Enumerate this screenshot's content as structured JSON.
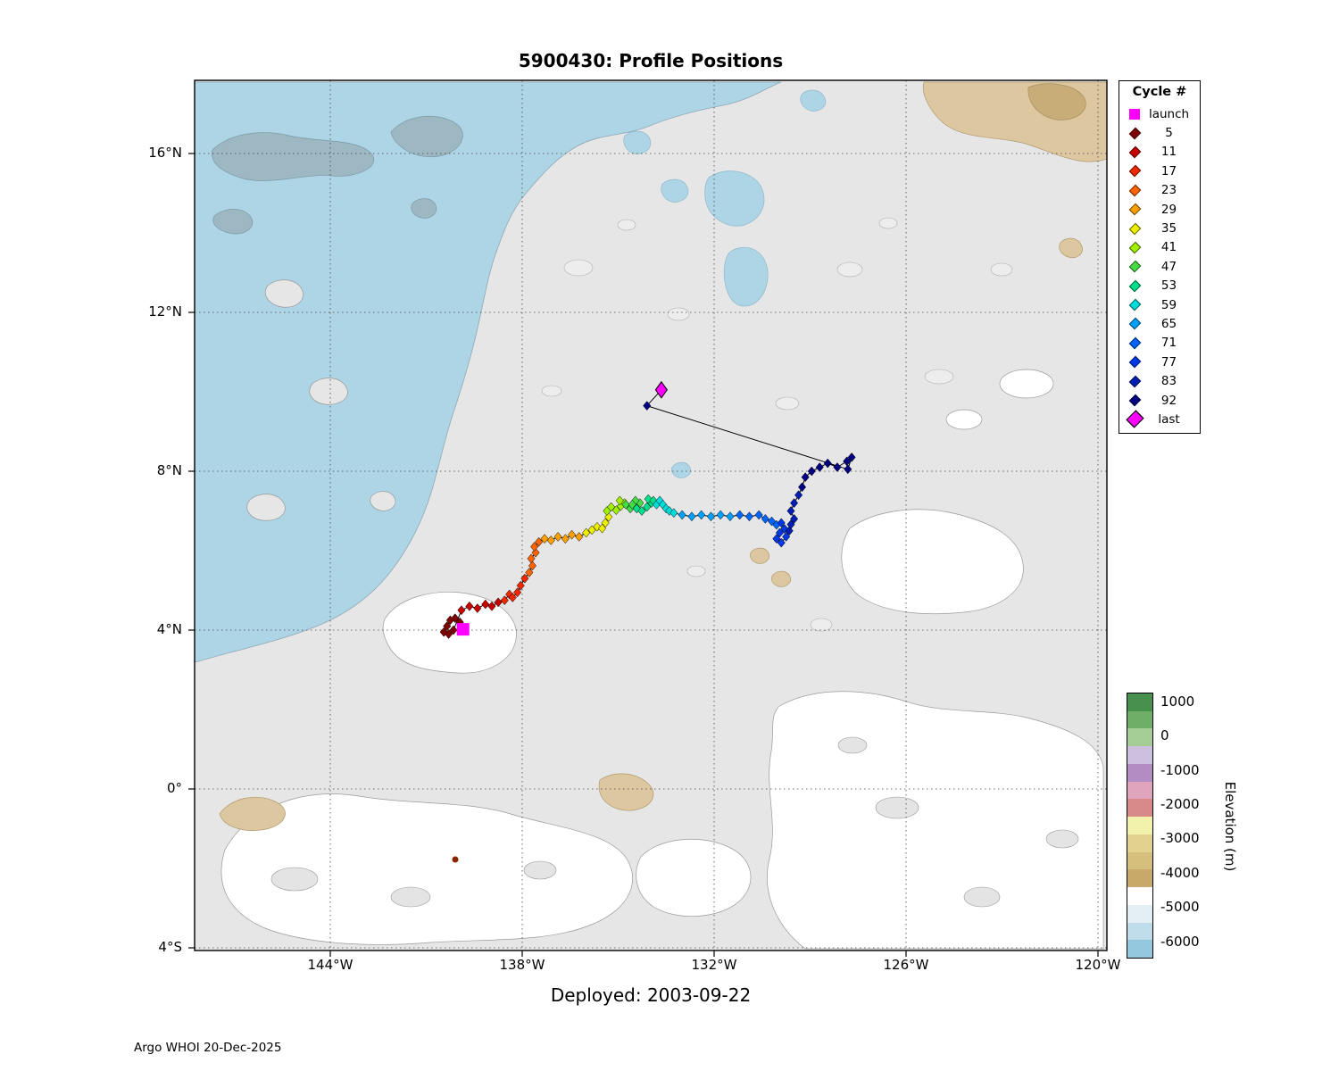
{
  "title": "5900430: Profile Positions",
  "deployed": "Deployed: 2003-09-22",
  "credit": "Argo WHOI 20-Dec-2025",
  "axes": {
    "x_ticks": [
      {
        "label": "144°W"
      },
      {
        "label": "138°W"
      },
      {
        "label": "132°W"
      },
      {
        "label": "126°W"
      },
      {
        "label": "120°W"
      }
    ],
    "y_ticks": [
      {
        "label": "16°N"
      },
      {
        "label": "12°N"
      },
      {
        "label": "8°N"
      },
      {
        "label": "4°N"
      },
      {
        "label": "0°"
      },
      {
        "label": "4°S"
      }
    ]
  },
  "legend": {
    "title": "Cycle #",
    "launch": {
      "label": "launch",
      "color": "#FF00FF"
    },
    "last": {
      "label": "last",
      "color": "#FF00FF"
    },
    "cycles": [
      {
        "label": "5",
        "color": "#7F0000"
      },
      {
        "label": "11",
        "color": "#C80000"
      },
      {
        "label": "17",
        "color": "#F02800"
      },
      {
        "label": "23",
        "color": "#FF6400"
      },
      {
        "label": "29",
        "color": "#FFA000"
      },
      {
        "label": "35",
        "color": "#EDED00"
      },
      {
        "label": "41",
        "color": "#A0F000"
      },
      {
        "label": "47",
        "color": "#46DC46"
      },
      {
        "label": "53",
        "color": "#00E08C"
      },
      {
        "label": "59",
        "color": "#00DCDC"
      },
      {
        "label": "65",
        "color": "#00A0FF"
      },
      {
        "label": "71",
        "color": "#0064FF"
      },
      {
        "label": "77",
        "color": "#0038E8"
      },
      {
        "label": "83",
        "color": "#001EB4"
      },
      {
        "label": "92",
        "color": "#000080"
      }
    ]
  },
  "colorbar": {
    "label": "Elevation (m)",
    "ticks": [
      "1000",
      "0",
      "-1000",
      "-2000",
      "-3000",
      "-4000",
      "-5000",
      "-6000"
    ],
    "top_value": 1250,
    "bottom_value": -6500,
    "segments": [
      "#478F4C",
      "#6FAE66",
      "#A4CD96",
      "#CCC0DE",
      "#B48CC4",
      "#E0A4BC",
      "#D88A8A",
      "#F2F2AC",
      "#E3D18F",
      "#D6BE7C",
      "#C8A96A",
      "#FFFFFF",
      "#E3EEF5",
      "#BFDCEA",
      "#93C7DE"
    ]
  },
  "chart_data": {
    "type": "scatter",
    "title": "5900430: Profile Positions",
    "x_axis": {
      "label_ticks_deg_west": [
        144,
        138,
        132,
        126,
        120
      ],
      "range_deg_west": [
        148.2,
        119.7
      ]
    },
    "y_axis": {
      "label_ticks_deg_north": [
        16,
        12,
        8,
        4,
        0,
        -4
      ],
      "range_deg_north": [
        -4.1,
        17.9
      ]
    },
    "grid": "dotted",
    "legend_position": "outside-top-right",
    "trajectory": {
      "launch": {
        "lon_w": 139.85,
        "lat": 4.02
      },
      "last": {
        "lon_w": 133.65,
        "lat": 10.05
      },
      "points": [
        [
          139.95,
          4.2,
          0
        ],
        [
          140.1,
          4.3,
          0
        ],
        [
          140.25,
          4.25,
          0
        ],
        [
          140.35,
          4.1,
          0
        ],
        [
          140.45,
          3.95,
          0
        ],
        [
          140.3,
          3.9,
          0
        ],
        [
          140.15,
          4.0,
          0
        ],
        [
          139.9,
          4.5,
          1
        ],
        [
          139.65,
          4.6,
          1
        ],
        [
          139.4,
          4.55,
          1
        ],
        [
          139.15,
          4.65,
          1
        ],
        [
          138.95,
          4.6,
          1
        ],
        [
          138.75,
          4.7,
          1
        ],
        [
          138.55,
          4.75,
          2
        ],
        [
          138.4,
          4.9,
          2
        ],
        [
          138.3,
          4.82,
          2
        ],
        [
          138.15,
          4.95,
          2
        ],
        [
          138.05,
          5.12,
          2
        ],
        [
          137.92,
          5.3,
          2
        ],
        [
          137.78,
          5.45,
          3
        ],
        [
          137.68,
          5.62,
          3
        ],
        [
          137.72,
          5.8,
          3
        ],
        [
          137.58,
          5.95,
          3
        ],
        [
          137.62,
          6.1,
          3
        ],
        [
          137.48,
          6.22,
          3
        ],
        [
          137.3,
          6.3,
          4
        ],
        [
          137.1,
          6.26,
          4
        ],
        [
          136.88,
          6.35,
          4
        ],
        [
          136.65,
          6.3,
          4
        ],
        [
          136.45,
          6.4,
          4
        ],
        [
          136.22,
          6.35,
          4
        ],
        [
          136.0,
          6.45,
          5
        ],
        [
          135.82,
          6.52,
          5
        ],
        [
          135.66,
          6.6,
          5
        ],
        [
          135.5,
          6.56,
          5
        ],
        [
          135.4,
          6.7,
          5
        ],
        [
          135.3,
          6.85,
          5
        ],
        [
          135.35,
          7.0,
          6
        ],
        [
          135.22,
          7.1,
          6
        ],
        [
          135.06,
          7.02,
          6
        ],
        [
          134.92,
          7.12,
          6
        ],
        [
          134.8,
          7.2,
          6
        ],
        [
          134.95,
          7.26,
          6
        ],
        [
          134.76,
          7.16,
          7
        ],
        [
          134.62,
          7.06,
          7
        ],
        [
          134.46,
          7.1,
          7
        ],
        [
          134.32,
          7.2,
          7
        ],
        [
          134.46,
          7.26,
          7
        ],
        [
          134.56,
          7.16,
          7
        ],
        [
          134.42,
          7.06,
          8
        ],
        [
          134.26,
          7.0,
          8
        ],
        [
          134.1,
          7.1,
          8
        ],
        [
          133.96,
          7.2,
          8
        ],
        [
          134.06,
          7.3,
          8
        ],
        [
          133.9,
          7.26,
          8
        ],
        [
          133.8,
          7.16,
          9
        ],
        [
          133.7,
          7.26,
          9
        ],
        [
          133.6,
          7.16,
          9
        ],
        [
          133.5,
          7.06,
          9
        ],
        [
          133.4,
          7.0,
          9
        ],
        [
          133.26,
          6.95,
          9
        ],
        [
          133.0,
          6.9,
          10
        ],
        [
          132.7,
          6.86,
          10
        ],
        [
          132.4,
          6.9,
          10
        ],
        [
          132.1,
          6.86,
          10
        ],
        [
          131.8,
          6.9,
          10
        ],
        [
          131.5,
          6.86,
          10
        ],
        [
          131.2,
          6.9,
          11
        ],
        [
          130.9,
          6.86,
          11
        ],
        [
          130.6,
          6.9,
          11
        ],
        [
          130.4,
          6.8,
          11
        ],
        [
          130.2,
          6.74,
          11
        ],
        [
          130.05,
          6.65,
          11
        ],
        [
          129.9,
          6.7,
          12
        ],
        [
          129.8,
          6.55,
          12
        ],
        [
          129.95,
          6.45,
          12
        ],
        [
          130.05,
          6.3,
          12
        ],
        [
          129.9,
          6.2,
          12
        ],
        [
          129.75,
          6.35,
          12
        ],
        [
          129.65,
          6.5,
          13
        ],
        [
          129.6,
          6.66,
          13
        ],
        [
          129.5,
          6.8,
          13
        ],
        [
          129.6,
          7.0,
          13
        ],
        [
          129.5,
          7.2,
          13
        ],
        [
          129.36,
          7.4,
          13
        ],
        [
          129.25,
          7.6,
          14
        ],
        [
          129.15,
          7.85,
          14
        ],
        [
          128.95,
          8.0,
          14
        ],
        [
          128.7,
          8.1,
          14
        ],
        [
          128.45,
          8.2,
          14
        ],
        [
          128.15,
          8.1,
          14
        ],
        [
          127.85,
          8.25,
          14
        ],
        [
          127.7,
          8.35,
          14
        ],
        [
          127.82,
          8.05,
          14
        ],
        [
          134.1,
          9.65,
          14
        ]
      ]
    }
  }
}
